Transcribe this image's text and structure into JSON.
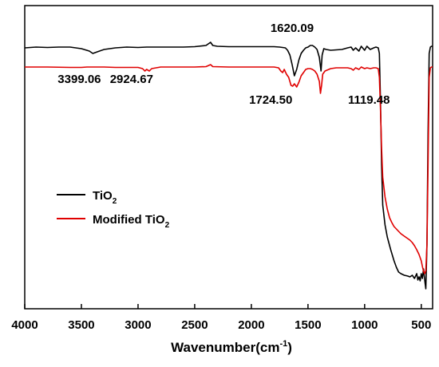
{
  "chart_data": {
    "type": "line",
    "xlabel": "Wavenumber(cm-1)",
    "xlabel_parts": {
      "main": "Wavenumber(cm",
      "sup": "-1",
      "close": ")"
    },
    "xlim": [
      4000,
      400
    ],
    "x_reversed": true,
    "y_ticks_shown": false,
    "grid": false,
    "legend_position": "middle-left",
    "x_ticks": [
      4000,
      3500,
      3000,
      2500,
      2000,
      1500,
      1000,
      500
    ],
    "x_tick_labels": [
      "4000",
      "3500",
      "3000",
      "2500",
      "2000",
      "1500",
      "1000",
      "500"
    ],
    "series": [
      {
        "name": "TiO2",
        "legend_parts": {
          "main": "TiO",
          "sub": "2",
          "suffix": ""
        },
        "color": "#000000",
        "points": [
          [
            4000,
            53
          ],
          [
            3900,
            52
          ],
          [
            3800,
            52.5
          ],
          [
            3700,
            52
          ],
          [
            3600,
            52
          ],
          [
            3500,
            54
          ],
          [
            3430,
            57
          ],
          [
            3399,
            60
          ],
          [
            3360,
            58
          ],
          [
            3300,
            55
          ],
          [
            3200,
            53
          ],
          [
            3100,
            52
          ],
          [
            3000,
            52.5
          ],
          [
            2924,
            52
          ],
          [
            2800,
            52
          ],
          [
            2700,
            52
          ],
          [
            2600,
            52
          ],
          [
            2500,
            51.5
          ],
          [
            2400,
            50
          ],
          [
            2360,
            46
          ],
          [
            2340,
            50
          ],
          [
            2300,
            51
          ],
          [
            2200,
            51.5
          ],
          [
            2100,
            51.5
          ],
          [
            2000,
            51.5
          ],
          [
            1900,
            51.5
          ],
          [
            1800,
            51.5
          ],
          [
            1750,
            52
          ],
          [
            1700,
            53
          ],
          [
            1680,
            56
          ],
          [
            1660,
            62
          ],
          [
            1640,
            74
          ],
          [
            1620,
            88
          ],
          [
            1600,
            80
          ],
          [
            1580,
            68
          ],
          [
            1560,
            60
          ],
          [
            1540,
            56
          ],
          [
            1520,
            53
          ],
          [
            1500,
            52
          ],
          [
            1480,
            50
          ],
          [
            1460,
            50
          ],
          [
            1440,
            52
          ],
          [
            1420,
            55
          ],
          [
            1400,
            65
          ],
          [
            1385,
            82
          ],
          [
            1375,
            62
          ],
          [
            1360,
            54
          ],
          [
            1340,
            55
          ],
          [
            1300,
            56
          ],
          [
            1250,
            55.5
          ],
          [
            1200,
            55
          ],
          [
            1150,
            53
          ],
          [
            1119,
            52
          ],
          [
            1100,
            56
          ],
          [
            1080,
            53
          ],
          [
            1050,
            57
          ],
          [
            1030,
            51
          ],
          [
            1000,
            56
          ],
          [
            980,
            51
          ],
          [
            950,
            55
          ],
          [
            920,
            53
          ],
          [
            900,
            52
          ],
          [
            880,
            53
          ],
          [
            870,
            60
          ],
          [
            860,
            120
          ],
          [
            850,
            200
          ],
          [
            840,
            250
          ],
          [
            820,
            275
          ],
          [
            800,
            290
          ],
          [
            770,
            306
          ],
          [
            740,
            320
          ],
          [
            720,
            328
          ],
          [
            700,
            334
          ],
          [
            680,
            336
          ],
          [
            650,
            338
          ],
          [
            620,
            339
          ],
          [
            600,
            340
          ],
          [
            580,
            338
          ],
          [
            560,
            342
          ],
          [
            540,
            336
          ],
          [
            530,
            344
          ],
          [
            520,
            340
          ],
          [
            510,
            345
          ],
          [
            500,
            336
          ],
          [
            490,
            342
          ],
          [
            480,
            330
          ],
          [
            470,
            344
          ],
          [
            460,
            355
          ],
          [
            450,
            300
          ],
          [
            440,
            160
          ],
          [
            430,
            60
          ],
          [
            420,
            52
          ],
          [
            410,
            51
          ],
          [
            400,
            51
          ]
        ]
      },
      {
        "name": "Modified TiO2",
        "legend_parts": {
          "main": "Modified TiO",
          "sub": "2",
          "suffix": ""
        },
        "color": "#e00000",
        "points": [
          [
            4000,
            77
          ],
          [
            3800,
            77
          ],
          [
            3600,
            77.5
          ],
          [
            3500,
            77.5
          ],
          [
            3450,
            77
          ],
          [
            3399,
            77
          ],
          [
            3300,
            77
          ],
          [
            3200,
            77.5
          ],
          [
            3100,
            77.5
          ],
          [
            3000,
            77.5
          ],
          [
            2960,
            79
          ],
          [
            2940,
            82
          ],
          [
            2924,
            80
          ],
          [
            2900,
            82
          ],
          [
            2880,
            79
          ],
          [
            2800,
            77
          ],
          [
            2600,
            77
          ],
          [
            2500,
            77
          ],
          [
            2400,
            76.5
          ],
          [
            2360,
            74
          ],
          [
            2340,
            76.5
          ],
          [
            2200,
            77
          ],
          [
            2000,
            77
          ],
          [
            1800,
            77
          ],
          [
            1760,
            78
          ],
          [
            1740,
            82
          ],
          [
            1724,
            84
          ],
          [
            1710,
            80
          ],
          [
            1690,
            86
          ],
          [
            1670,
            90
          ],
          [
            1650,
            100
          ],
          [
            1635,
            101
          ],
          [
            1620,
            98
          ],
          [
            1600,
            102
          ],
          [
            1580,
            96
          ],
          [
            1560,
            88
          ],
          [
            1540,
            84
          ],
          [
            1520,
            80
          ],
          [
            1500,
            79
          ],
          [
            1480,
            79
          ],
          [
            1460,
            80
          ],
          [
            1440,
            82
          ],
          [
            1420,
            86
          ],
          [
            1400,
            95
          ],
          [
            1390,
            110
          ],
          [
            1380,
            100
          ],
          [
            1370,
            86
          ],
          [
            1350,
            82
          ],
          [
            1300,
            79
          ],
          [
            1250,
            78
          ],
          [
            1200,
            78
          ],
          [
            1150,
            78
          ],
          [
            1119,
            79
          ],
          [
            1100,
            81
          ],
          [
            1080,
            78
          ],
          [
            1050,
            80
          ],
          [
            1030,
            77
          ],
          [
            1000,
            79
          ],
          [
            980,
            78
          ],
          [
            950,
            79
          ],
          [
            920,
            78
          ],
          [
            900,
            78
          ],
          [
            880,
            79
          ],
          [
            870,
            90
          ],
          [
            860,
            130
          ],
          [
            850,
            180
          ],
          [
            840,
            215
          ],
          [
            820,
            240
          ],
          [
            800,
            255
          ],
          [
            780,
            266
          ],
          [
            760,
            272
          ],
          [
            740,
            277
          ],
          [
            720,
            280
          ],
          [
            700,
            283
          ],
          [
            680,
            286
          ],
          [
            660,
            288
          ],
          [
            640,
            290
          ],
          [
            620,
            292
          ],
          [
            600,
            294
          ],
          [
            580,
            297
          ],
          [
            560,
            301
          ],
          [
            540,
            306
          ],
          [
            520,
            312
          ],
          [
            500,
            320
          ],
          [
            490,
            327
          ],
          [
            480,
            333
          ],
          [
            470,
            336
          ],
          [
            460,
            332
          ],
          [
            450,
            300
          ],
          [
            440,
            200
          ],
          [
            430,
            90
          ],
          [
            420,
            78
          ],
          [
            410,
            77
          ],
          [
            400,
            77
          ]
        ]
      }
    ],
    "annotations": [
      {
        "text": "1620.09",
        "x": 1620,
        "anchor": "above"
      },
      {
        "text": "3399.06",
        "x": 3399,
        "anchor": "below"
      },
      {
        "text": "2924.67",
        "x": 2924,
        "anchor": "below"
      },
      {
        "text": "1724.50",
        "x": 1724,
        "anchor": "below"
      },
      {
        "text": "1119.48",
        "x": 1119,
        "anchor": "below"
      }
    ]
  }
}
